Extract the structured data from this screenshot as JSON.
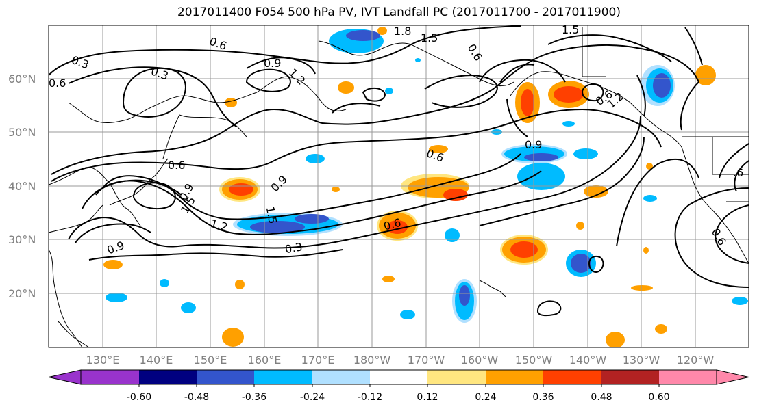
{
  "title": "2017011400 F054 500 hPa PV, IVT Landfall PC (2017011700 - 2017011900)",
  "lat_labels": [
    "60°N",
    "50°N",
    "40°N",
    "30°N",
    "20°N"
  ],
  "lon_labels": [
    "130°E",
    "140°E",
    "150°E",
    "160°E",
    "170°E",
    "180°W",
    "170°W",
    "160°W",
    "150°W",
    "140°W",
    "130°W",
    "120°W"
  ],
  "colorbar": {
    "labels": [
      "-0.60",
      "-0.48",
      "-0.36",
      "-0.24",
      "-0.12",
      "0.12",
      "0.24",
      "0.36",
      "0.48",
      "0.60"
    ],
    "colors": [
      "#9933cc",
      "#000080",
      "#3355cc",
      "#00bbff",
      "#b0e0ff",
      "#ffffff",
      "#ffe680",
      "#ffa000",
      "#ff4000",
      "#b22222",
      "#ff88aa"
    ]
  },
  "contour_labels": [
    "0.3",
    "0.6",
    "0.6",
    "0.9",
    "1.2",
    "1.5",
    "1.8",
    "1.5",
    "0.3",
    "0.6",
    "0.6",
    "0.9",
    "0.9",
    "1.2",
    "1.5",
    "0.9",
    "0.6",
    "0.3",
    "0.6",
    "0.6",
    "1.2",
    "0.6",
    "0.9",
    "1.5",
    ".6"
  ]
}
